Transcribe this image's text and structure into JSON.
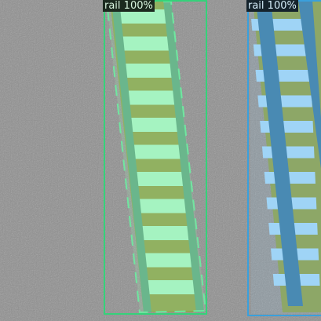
{
  "detections": [
    {
      "label": "rail 100%",
      "box_color": "#35d27a",
      "mask_color": "#9ff7b8",
      "label_text_color": "#d9f5df"
    },
    {
      "label": "rail 100%",
      "box_color": "#3aa0dc",
      "mask_color": "#8ccbf2",
      "label_text_color": "#d6eefb"
    }
  ],
  "colors": {
    "ground": "#8f8f8f",
    "ballast": "#8ea24f",
    "rail_left": "#5fa883",
    "rail_right": "#3e7fa8"
  }
}
